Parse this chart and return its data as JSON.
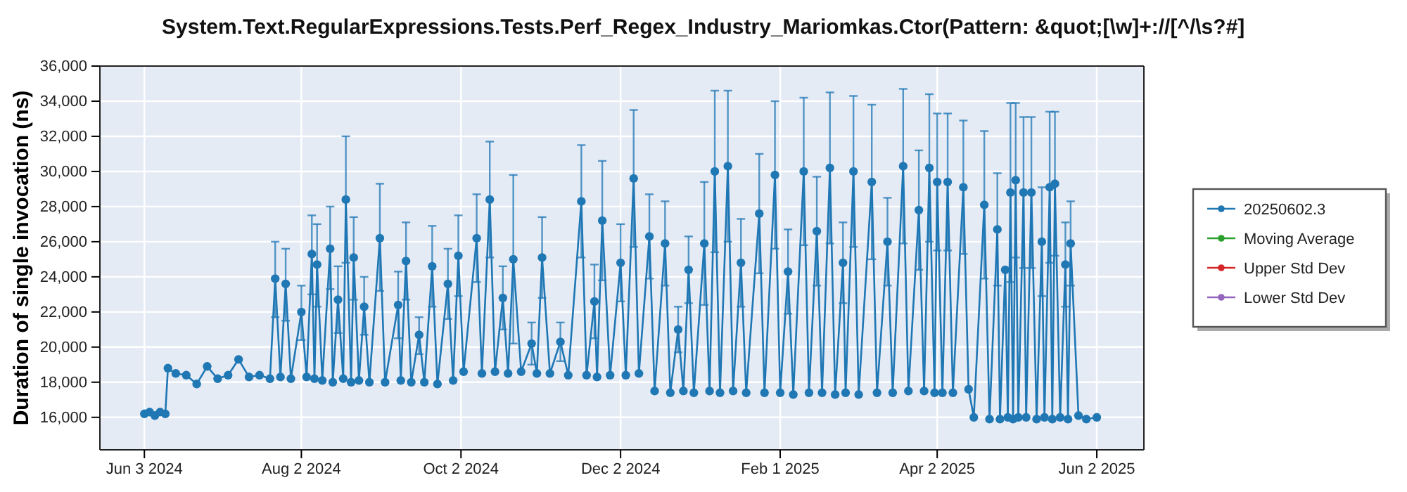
{
  "chart_data": {
    "type": "line",
    "title": "System.Text.RegularExpressions.Tests.Perf_Regex_Industry_Mariomkas.Ctor(Pattern: &quot;[\\w]+://[^/\\s?#]",
    "ylabel": "Duration of single invocation (ns)",
    "xlim": [
      "2024-05-17",
      "2025-06-20"
    ],
    "xticks": [
      {
        "value": "2024-06-03",
        "label": "Jun 3 2024"
      },
      {
        "value": "2024-08-02",
        "label": "Aug 2 2024"
      },
      {
        "value": "2024-10-02",
        "label": "Oct 2 2024"
      },
      {
        "value": "2024-12-02",
        "label": "Dec 2 2024"
      },
      {
        "value": "2025-02-01",
        "label": "Feb 1 2025"
      },
      {
        "value": "2025-04-02",
        "label": "Apr 2 2025"
      },
      {
        "value": "2025-06-02",
        "label": "Jun 2 2025"
      }
    ],
    "ylim": [
      14150,
      36000
    ],
    "yticks": [
      {
        "value": 16000,
        "label": "16,000"
      },
      {
        "value": 18000,
        "label": "18,000"
      },
      {
        "value": 20000,
        "label": "20,000"
      },
      {
        "value": 22000,
        "label": "22,000"
      },
      {
        "value": 24000,
        "label": "24,000"
      },
      {
        "value": 26000,
        "label": "26,000"
      },
      {
        "value": 28000,
        "label": "28,000"
      },
      {
        "value": 30000,
        "label": "30,000"
      },
      {
        "value": 32000,
        "label": "32,000"
      },
      {
        "value": 34000,
        "label": "34,000"
      },
      {
        "value": 36000,
        "label": "36,000"
      }
    ],
    "grid": true,
    "legend": "right",
    "marker": "circle",
    "series": [
      {
        "name": "20250602.3",
        "color": "#1f77b4",
        "x": [
          "2024-06-03",
          "2024-06-05",
          "2024-06-07",
          "2024-06-09",
          "2024-06-11",
          "2024-06-12",
          "2024-06-15",
          "2024-06-19",
          "2024-06-23",
          "2024-06-27",
          "2024-07-01",
          "2024-07-05",
          "2024-07-09",
          "2024-07-13",
          "2024-07-17",
          "2024-07-21",
          "2024-07-23",
          "2024-07-25",
          "2024-07-27",
          "2024-07-29",
          "2024-08-02",
          "2024-08-04",
          "2024-08-06",
          "2024-08-07",
          "2024-08-08",
          "2024-08-10",
          "2024-08-13",
          "2024-08-14",
          "2024-08-16",
          "2024-08-18",
          "2024-08-19",
          "2024-08-21",
          "2024-08-22",
          "2024-08-24",
          "2024-08-26",
          "2024-08-28",
          "2024-09-01",
          "2024-09-03",
          "2024-09-08",
          "2024-09-09",
          "2024-09-11",
          "2024-09-13",
          "2024-09-16",
          "2024-09-18",
          "2024-09-21",
          "2024-09-23",
          "2024-09-27",
          "2024-09-29",
          "2024-10-01",
          "2024-10-03",
          "2024-10-08",
          "2024-10-10",
          "2024-10-13",
          "2024-10-15",
          "2024-10-18",
          "2024-10-20",
          "2024-10-22",
          "2024-10-25",
          "2024-10-29",
          "2024-10-31",
          "2024-11-02",
          "2024-11-05",
          "2024-11-09",
          "2024-11-12",
          "2024-11-17",
          "2024-11-19",
          "2024-11-22",
          "2024-11-23",
          "2024-11-25",
          "2024-11-28",
          "2024-12-02",
          "2024-12-04",
          "2024-12-07",
          "2024-12-09",
          "2024-12-13",
          "2024-12-15",
          "2024-12-19",
          "2024-12-21",
          "2024-12-24",
          "2024-12-26",
          "2024-12-28",
          "2024-12-30",
          "2025-01-03",
          "2025-01-05",
          "2025-01-07",
          "2025-01-09",
          "2025-01-12",
          "2025-01-14",
          "2025-01-17",
          "2025-01-19",
          "2025-01-24",
          "2025-01-26",
          "2025-01-30",
          "2025-02-01",
          "2025-02-04",
          "2025-02-06",
          "2025-02-10",
          "2025-02-12",
          "2025-02-15",
          "2025-02-17",
          "2025-02-20",
          "2025-02-22",
          "2025-02-25",
          "2025-02-26",
          "2025-03-01",
          "2025-03-03",
          "2025-03-08",
          "2025-03-10",
          "2025-03-14",
          "2025-03-16",
          "2025-03-20",
          "2025-03-22",
          "2025-03-26",
          "2025-03-28",
          "2025-03-30",
          "2025-04-01",
          "2025-04-02",
          "2025-04-04",
          "2025-04-06",
          "2025-04-08",
          "2025-04-12",
          "2025-04-14",
          "2025-04-16",
          "2025-04-20",
          "2025-04-22",
          "2025-04-25",
          "2025-04-26",
          "2025-04-28",
          "2025-04-29",
          "2025-04-30",
          "2025-05-01",
          "2025-05-02",
          "2025-05-03",
          "2025-05-05",
          "2025-05-06",
          "2025-05-08",
          "2025-05-10",
          "2025-05-12",
          "2025-05-13",
          "2025-05-15",
          "2025-05-16",
          "2025-05-17",
          "2025-05-19",
          "2025-05-21",
          "2025-05-22",
          "2025-05-23",
          "2025-05-26",
          "2025-05-29",
          "2025-06-02"
        ],
        "values": [
          16200,
          16300,
          16100,
          16300,
          16200,
          18800,
          18500,
          18400,
          17900,
          18900,
          18200,
          18400,
          19300,
          18300,
          18400,
          18200,
          23900,
          18300,
          23600,
          18200,
          22000,
          18300,
          25300,
          18200,
          24700,
          18100,
          25600,
          18000,
          22700,
          18200,
          28400,
          18000,
          25100,
          18100,
          22300,
          18000,
          26200,
          18000,
          22400,
          18100,
          24900,
          18000,
          20700,
          18000,
          24600,
          17900,
          23600,
          18100,
          25200,
          18600,
          26200,
          18500,
          28400,
          18600,
          22800,
          18500,
          25000,
          18600,
          20200,
          18500,
          25100,
          18500,
          20300,
          18400,
          28300,
          18400,
          22600,
          18300,
          27200,
          18400,
          24800,
          18400,
          29600,
          18500,
          26300,
          17500,
          25900,
          17400,
          21000,
          17500,
          24400,
          17400,
          25900,
          17500,
          30000,
          17400,
          30300,
          17500,
          24800,
          17400,
          27600,
          17400,
          29800,
          17400,
          24300,
          17300,
          30000,
          17400,
          26600,
          17400,
          30200,
          17300,
          24800,
          17400,
          30000,
          17300,
          29400,
          17400,
          26000,
          17400,
          30300,
          17500,
          27800,
          17500,
          30200,
          17400,
          29400,
          17400,
          29400,
          17400,
          29100,
          17600,
          16000,
          28100,
          15900,
          26700,
          15900,
          24400,
          16000,
          28800,
          15900,
          29500,
          16000,
          28800,
          16000,
          28800,
          15900,
          26000,
          16000,
          29100,
          15900,
          29300,
          16000,
          24700,
          15900,
          25900,
          16100,
          15900,
          16000
        ],
        "errors": [
          null,
          null,
          null,
          null,
          null,
          null,
          null,
          null,
          null,
          null,
          null,
          null,
          null,
          null,
          null,
          null,
          [
            21700,
            26000
          ],
          null,
          [
            21500,
            25600
          ],
          null,
          [
            20400,
            23500
          ],
          null,
          [
            23000,
            27500
          ],
          null,
          [
            22300,
            27000
          ],
          null,
          [
            23300,
            28000
          ],
          null,
          [
            20800,
            24600
          ],
          null,
          [
            24800,
            32000
          ],
          null,
          [
            22700,
            27400
          ],
          null,
          [
            20700,
            24000
          ],
          null,
          [
            23200,
            29300
          ],
          null,
          [
            20500,
            24300
          ],
          null,
          [
            22700,
            27100
          ],
          null,
          [
            19600,
            21700
          ],
          null,
          [
            22300,
            26900
          ],
          null,
          [
            21600,
            25600
          ],
          null,
          [
            22900,
            27500
          ],
          null,
          [
            23700,
            28700
          ],
          null,
          [
            25100,
            31700
          ],
          null,
          [
            21000,
            24600
          ],
          null,
          [
            20200,
            29800
          ],
          null,
          [
            19000,
            21400
          ],
          null,
          [
            22800,
            27400
          ],
          null,
          [
            19200,
            21400
          ],
          null,
          [
            25100,
            31500
          ],
          null,
          [
            20500,
            24700
          ],
          null,
          [
            23800,
            30600
          ],
          null,
          [
            22600,
            27000
          ],
          null,
          [
            25700,
            33500
          ],
          null,
          [
            23900,
            28700
          ],
          null,
          [
            23500,
            28300
          ],
          null,
          [
            19700,
            22300
          ],
          null,
          [
            22500,
            26300
          ],
          null,
          [
            22400,
            29400
          ],
          null,
          [
            25400,
            34600
          ],
          null,
          [
            26000,
            34600
          ],
          null,
          [
            22300,
            27300
          ],
          null,
          [
            24200,
            31000
          ],
          null,
          [
            25600,
            34000
          ],
          null,
          [
            21900,
            26700
          ],
          null,
          [
            25800,
            34200
          ],
          null,
          [
            23500,
            29700
          ],
          null,
          [
            25900,
            34500
          ],
          null,
          [
            22500,
            27100
          ],
          null,
          [
            25700,
            34300
          ],
          null,
          [
            25000,
            33800
          ],
          null,
          [
            23500,
            28500
          ],
          null,
          [
            25900,
            34700
          ],
          null,
          [
            24400,
            31200
          ],
          null,
          [
            26000,
            34400
          ],
          null,
          [
            25500,
            33300
          ],
          null,
          [
            25500,
            33300
          ],
          null,
          [
            25300,
            32900
          ],
          null,
          null,
          [
            23900,
            32300
          ],
          null,
          [
            23500,
            29900
          ],
          null,
          null,
          null,
          [
            23700,
            33900
          ],
          null,
          [
            25100,
            33900
          ],
          null,
          [
            24500,
            33100
          ],
          null,
          [
            24500,
            33100
          ],
          null,
          [
            22900,
            29100
          ],
          null,
          [
            24800,
            33400
          ],
          null,
          [
            25200,
            33400
          ],
          null,
          [
            22300,
            27100
          ],
          null,
          [
            23500,
            28300
          ],
          null,
          null,
          null
        ]
      },
      {
        "name": "Moving Average",
        "color": "#2ca02c"
      },
      {
        "name": "Upper Std Dev",
        "color": "#d62728"
      },
      {
        "name": "Lower Std Dev",
        "color": "#9467bd"
      }
    ]
  }
}
